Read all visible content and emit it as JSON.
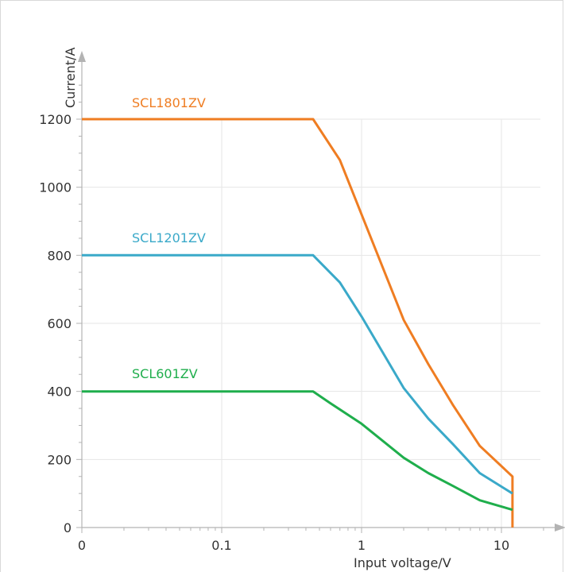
{
  "chart_data": {
    "type": "line",
    "title": "",
    "xlabel": "Input voltage/V",
    "ylabel": "Current/A",
    "x_scale": "log",
    "x_ticks": [
      "0",
      "0.1",
      "1",
      "10"
    ],
    "y_ticks": [
      "0",
      "200",
      "400",
      "600",
      "800",
      "1000",
      "1200"
    ],
    "ylim": [
      0,
      1200
    ],
    "grid": true,
    "legend": "inline labels",
    "series": [
      {
        "name": "SCL1801ZV",
        "color": "#ef7d22",
        "points": [
          [
            0.01,
            1200
          ],
          [
            0.45,
            1200
          ],
          [
            0.7,
            1080
          ],
          [
            1,
            920
          ],
          [
            2,
            610
          ],
          [
            3,
            480
          ],
          [
            4.5,
            360
          ],
          [
            7,
            240
          ],
          [
            12,
            150
          ],
          [
            12,
            0
          ]
        ]
      },
      {
        "name": "SCL1201ZV",
        "color": "#3aa9c9",
        "points": [
          [
            0.01,
            800
          ],
          [
            0.45,
            800
          ],
          [
            0.7,
            720
          ],
          [
            1,
            620
          ],
          [
            2,
            410
          ],
          [
            3,
            320
          ],
          [
            4.5,
            245
          ],
          [
            7,
            160
          ],
          [
            12,
            100
          ]
        ]
      },
      {
        "name": "SCL601ZV",
        "color": "#1fae4c",
        "points": [
          [
            0.01,
            400
          ],
          [
            0.45,
            400
          ],
          [
            0.6,
            365
          ],
          [
            1,
            305
          ],
          [
            2,
            205
          ],
          [
            3,
            160
          ],
          [
            4.5,
            122
          ],
          [
            7,
            80
          ],
          [
            12,
            52
          ]
        ]
      }
    ]
  }
}
